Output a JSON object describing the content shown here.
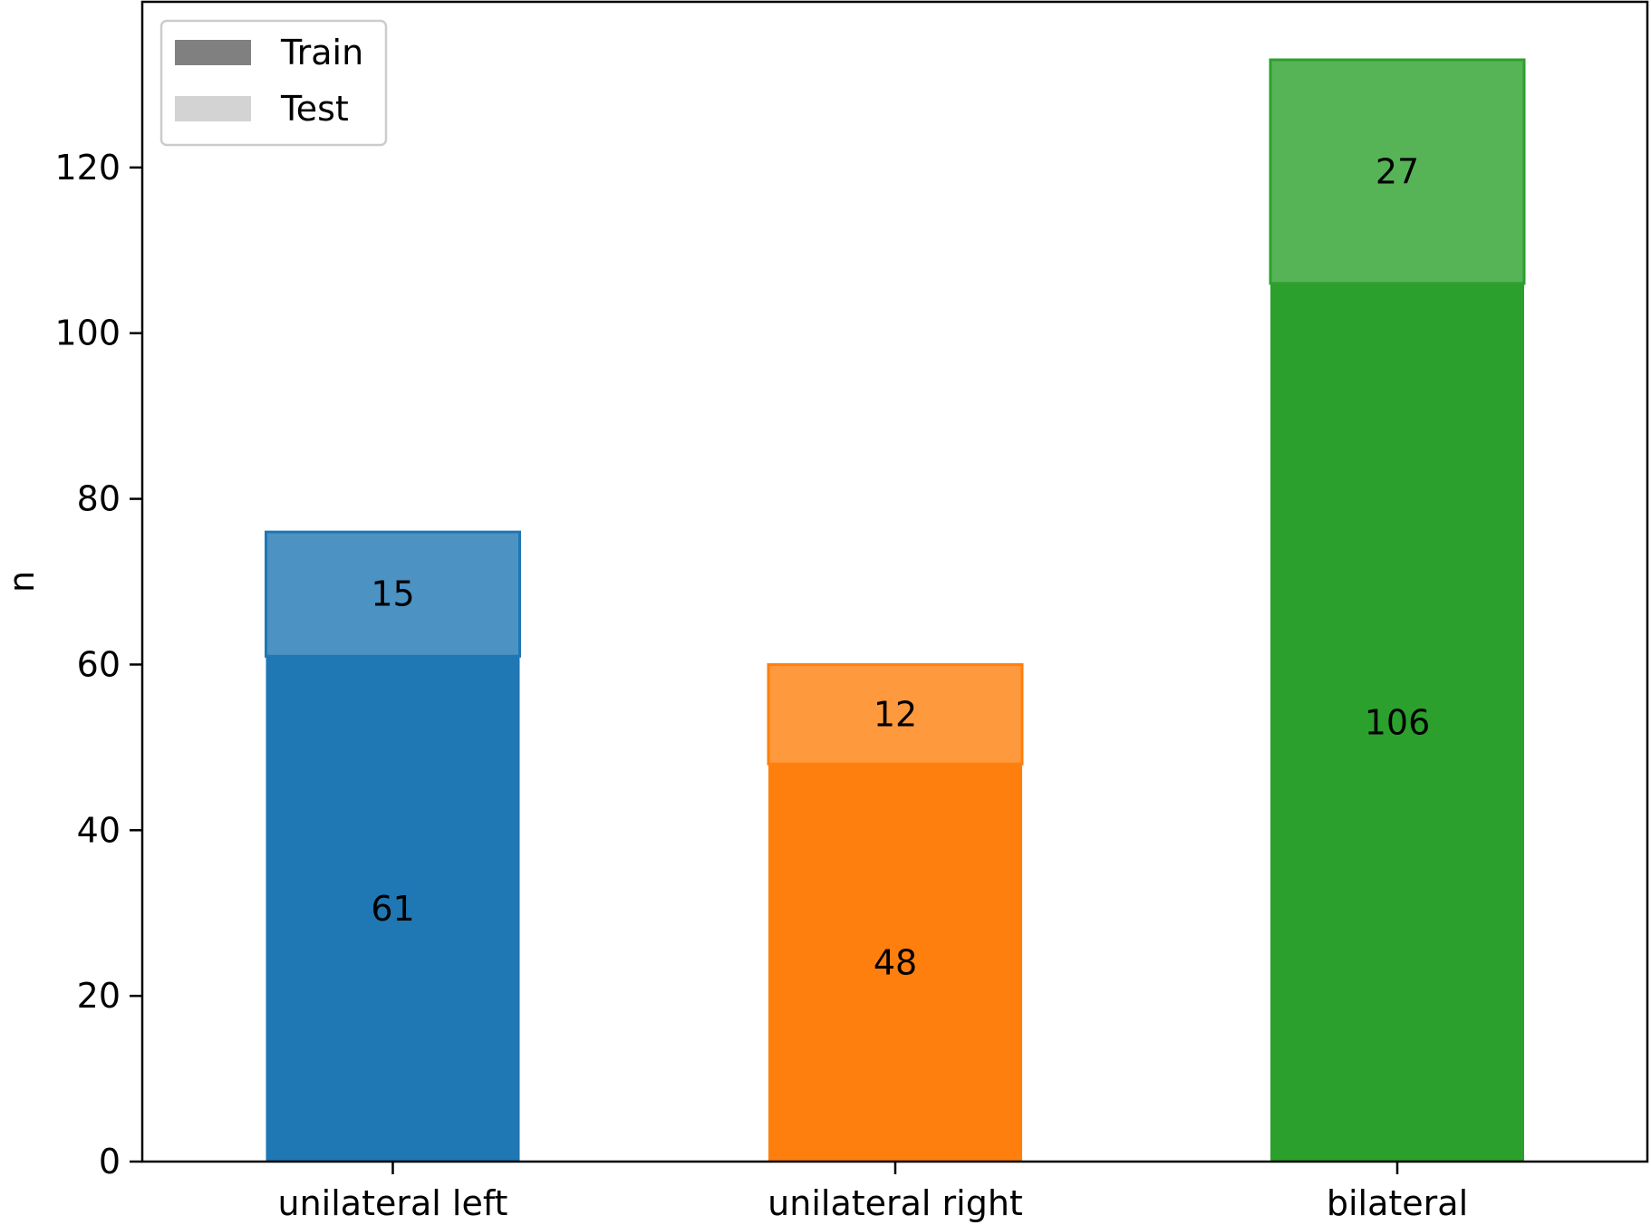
{
  "chart_data": {
    "type": "bar",
    "stacked": true,
    "title": "",
    "xlabel": "",
    "ylabel": "n",
    "categories": [
      "unilateral left",
      "unilateral right",
      "bilateral"
    ],
    "category_colors": [
      "#1f77b4",
      "#ff7f0e",
      "#2ca02c"
    ],
    "series": [
      {
        "name": "Train",
        "values": [
          61,
          48,
          106
        ],
        "opacity": 1.0,
        "legend_color": "#808080"
      },
      {
        "name": "Test",
        "values": [
          15,
          12,
          27
        ],
        "opacity": 0.8,
        "legend_color": "#d3d3d3"
      }
    ],
    "ylim": [
      0,
      140
    ],
    "yticks": [
      0,
      20,
      40,
      60,
      80,
      100,
      120
    ],
    "grid": false,
    "legend_position": "top-left"
  }
}
